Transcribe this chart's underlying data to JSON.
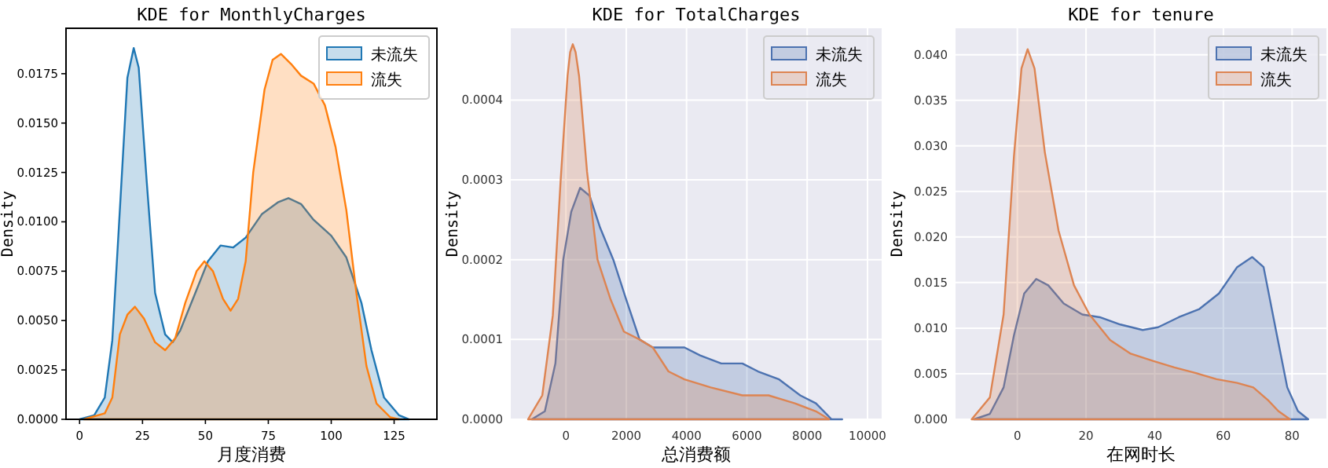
{
  "chart_data": [
    {
      "type": "area",
      "title": "KDE for MonthlyCharges",
      "xlabel": "月度消费",
      "ylabel": "Density",
      "grid": false,
      "legend": "top right",
      "xlim": [
        -5.4,
        142
      ],
      "xticks": [
        0,
        25,
        50,
        75,
        100,
        125
      ],
      "ylim": [
        0,
        0.0198
      ],
      "yticks": [
        {
          "value": 0,
          "label": "0.0000"
        },
        {
          "value": 0.0025,
          "label": "0.0025"
        },
        {
          "value": 0.005,
          "label": "0.0050"
        },
        {
          "value": 0.0075,
          "label": "0.0075"
        },
        {
          "value": 0.01,
          "label": "0.0100"
        },
        {
          "value": 0.0125,
          "label": "0.0125"
        },
        {
          "value": 0.015,
          "label": "0.0150"
        },
        {
          "value": 0.0175,
          "label": "0.0175"
        }
      ],
      "series": [
        {
          "name": "未流失",
          "color": "#1f77b4",
          "x": [
            0,
            5.8,
            10,
            13,
            16,
            19,
            21.5,
            23.5,
            26.7,
            30,
            34,
            37,
            40,
            46,
            51,
            56,
            61,
            66,
            72.5,
            79,
            83,
            88,
            93,
            100,
            106,
            112,
            116,
            121,
            127,
            131
          ],
          "values": [
            0,
            0.0002,
            0.0011,
            0.004,
            0.0106,
            0.0173,
            0.0188,
            0.0178,
            0.012,
            0.0064,
            0.0043,
            0.0039,
            0.0045,
            0.0064,
            0.008,
            0.0088,
            0.0087,
            0.0092,
            0.0104,
            0.011,
            0.0112,
            0.0109,
            0.0101,
            0.0093,
            0.0082,
            0.0059,
            0.0035,
            0.0011,
            0.0002,
            0
          ]
        },
        {
          "name": "流失",
          "color": "#ff7f0e",
          "x": [
            1.7,
            10,
            13,
            16,
            19,
            22,
            25.6,
            30,
            34,
            38,
            42,
            46.5,
            49.6,
            53,
            57,
            60,
            63,
            66,
            69,
            73.5,
            76.7,
            80,
            84,
            88,
            93,
            97.5,
            101.7,
            106,
            110,
            114,
            118,
            123.5,
            127
          ],
          "values": [
            0,
            0.0003,
            0.0011,
            0.0043,
            0.0053,
            0.0057,
            0.0051,
            0.0039,
            0.0035,
            0.0041,
            0.0059,
            0.0075,
            0.008,
            0.0075,
            0.0061,
            0.0055,
            0.0061,
            0.008,
            0.0125,
            0.0167,
            0.0182,
            0.0185,
            0.018,
            0.0174,
            0.017,
            0.0159,
            0.0138,
            0.0106,
            0.0064,
            0.0027,
            0.0008,
            0.0001,
            0
          ]
        }
      ]
    },
    {
      "type": "area",
      "title": "KDE for TotalCharges",
      "xlabel": "总消费额",
      "ylabel": "Density",
      "grid": true,
      "legend": "top right",
      "xlim": [
        -1830,
        10470
      ],
      "xticks": [
        0,
        2000,
        4000,
        6000,
        8000,
        10000
      ],
      "ylim": [
        0,
        0.00049
      ],
      "yticks": [
        {
          "value": 0,
          "label": "0.0000"
        },
        {
          "value": 0.0001,
          "label": "0.0001"
        },
        {
          "value": 0.0002,
          "label": "0.0002"
        },
        {
          "value": 0.0003,
          "label": "0.0003"
        },
        {
          "value": 0.0004,
          "label": "0.0004"
        }
      ],
      "series": [
        {
          "name": "未流失",
          "color": "#4c72b0",
          "x": [
            -1134,
            -700,
            -350,
            -90,
            175,
            470,
            785,
            1134,
            1570,
            2000,
            2443,
            2880,
            3400,
            3930,
            4450,
            5150,
            5850,
            6370,
            7070,
            7770,
            8290,
            8810,
            9160
          ],
          "values": [
            0,
            1e-05,
            7e-05,
            0.0002,
            0.00026,
            0.00029,
            0.00028,
            0.00024,
            0.0002,
            0.00015,
            0.0001,
            9e-05,
            9e-05,
            9e-05,
            8e-05,
            7e-05,
            7e-05,
            6e-05,
            5e-05,
            3e-05,
            2e-05,
            0,
            0
          ]
        },
        {
          "name": "流失",
          "color": "#dd8452",
          "x": [
            -1257,
            -785,
            -436,
            -175,
            52,
            140,
            227,
            320,
            436,
            700,
            1047,
            1483,
            1920,
            2443,
            2880,
            3400,
            3930,
            4800,
            5850,
            6720,
            7590,
            8290,
            8730
          ],
          "values": [
            0,
            3e-05,
            0.00013,
            0.0003,
            0.00043,
            0.00046,
            0.00047,
            0.00046,
            0.00043,
            0.00031,
            0.0002,
            0.00015,
            0.00011,
            0.0001,
            9e-05,
            6e-05,
            5e-05,
            4e-05,
            3e-05,
            3e-05,
            2e-05,
            1e-05,
            0
          ]
        }
      ]
    },
    {
      "type": "area",
      "title": "KDE for tenure",
      "xlabel": "在网时长",
      "ylabel": "Density",
      "grid": true,
      "legend": "top right",
      "xlim": [
        -18,
        90
      ],
      "xticks": [
        0,
        20,
        40,
        60,
        80
      ],
      "ylim": [
        0,
        0.0429
      ],
      "yticks": [
        {
          "value": 0,
          "label": "0.000"
        },
        {
          "value": 0.005,
          "label": "0.005"
        },
        {
          "value": 0.01,
          "label": "0.010"
        },
        {
          "value": 0.015,
          "label": "0.015"
        },
        {
          "value": 0.02,
          "label": "0.020"
        },
        {
          "value": 0.025,
          "label": "0.025"
        },
        {
          "value": 0.03,
          "label": "0.030"
        },
        {
          "value": 0.035,
          "label": "0.035"
        },
        {
          "value": 0.04,
          "label": "0.040"
        }
      ],
      "series": [
        {
          "name": "未流失",
          "color": "#4c72b0",
          "x": [
            -12.6,
            -8,
            -4,
            -1,
            2,
            5.5,
            9,
            13.5,
            18.9,
            24,
            30,
            36.5,
            41,
            47,
            53,
            58.7,
            64,
            68.4,
            71.7,
            75.6,
            78.6,
            81.7,
            84.7
          ],
          "values": [
            0,
            0.0006,
            0.0035,
            0.0092,
            0.0138,
            0.0154,
            0.0147,
            0.0127,
            0.0115,
            0.0112,
            0.0104,
            0.0098,
            0.0101,
            0.0112,
            0.0121,
            0.0138,
            0.0167,
            0.0178,
            0.0167,
            0.0092,
            0.0035,
            0.0009,
            0
          ]
        },
        {
          "name": "流失",
          "color": "#dd8452",
          "x": [
            -13.3,
            -8,
            -4,
            -1,
            1.2,
            3,
            5,
            8,
            12,
            16.5,
            21,
            27,
            33,
            39.5,
            45.7,
            51.8,
            58,
            64,
            68.7,
            73,
            76,
            79.4
          ],
          "values": [
            0,
            0.0024,
            0.0115,
            0.0288,
            0.0385,
            0.0406,
            0.0385,
            0.0293,
            0.0207,
            0.0147,
            0.0115,
            0.0087,
            0.0072,
            0.0064,
            0.0057,
            0.0051,
            0.0044,
            0.004,
            0.0035,
            0.0021,
            0.0009,
            0
          ]
        }
      ]
    }
  ]
}
